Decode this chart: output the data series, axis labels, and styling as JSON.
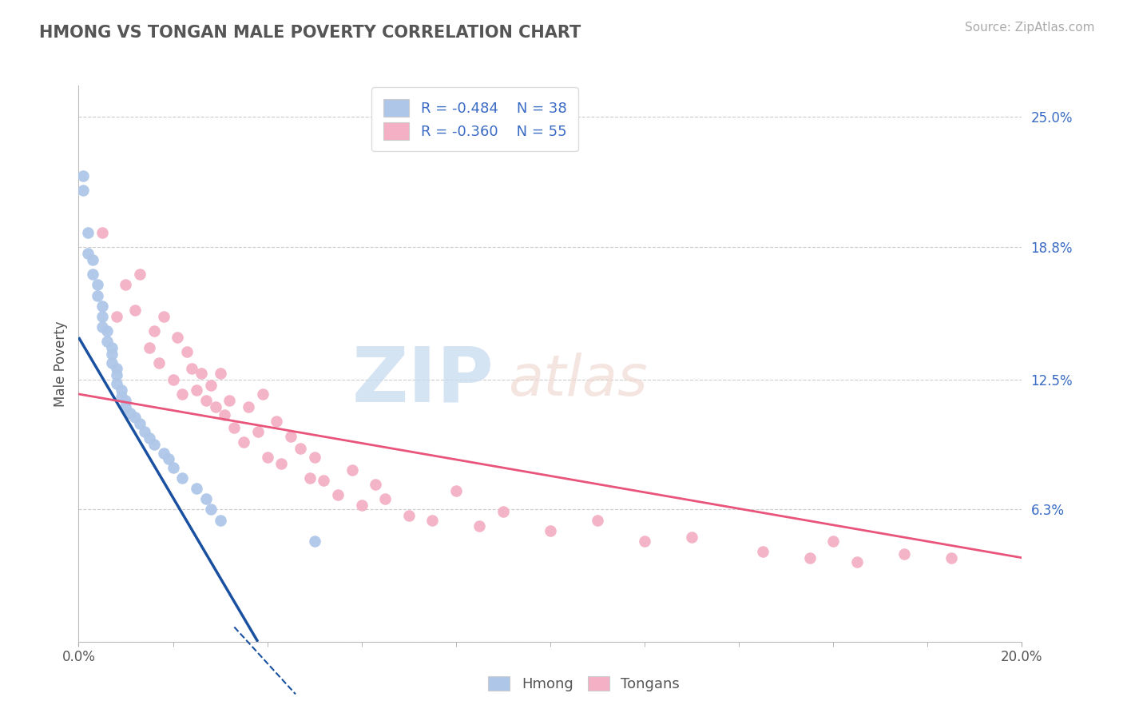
{
  "title": "HMONG VS TONGAN MALE POVERTY CORRELATION CHART",
  "source": "Source: ZipAtlas.com",
  "ylabel": "Male Poverty",
  "xlim": [
    0.0,
    0.2
  ],
  "ylim": [
    0.0,
    0.265
  ],
  "ytick_vals": [
    0.0,
    0.063,
    0.125,
    0.188,
    0.25
  ],
  "ytick_labels": [
    "",
    "6.3%",
    "12.5%",
    "18.8%",
    "25.0%"
  ],
  "xtick_vals": [
    0.0,
    0.2
  ],
  "xtick_labels": [
    "0.0%",
    "20.0%"
  ],
  "hmong_R": "-0.484",
  "hmong_N": "38",
  "tongan_R": "-0.360",
  "tongan_N": "55",
  "hmong_color": "#aec6e8",
  "tongan_color": "#f4b0c4",
  "hmong_line_color": "#1a50a0",
  "tongan_line_color": "#e8547a",
  "background_color": "#ffffff",
  "grid_color": "#cccccc",
  "hmong_x": [
    0.001,
    0.001,
    0.002,
    0.002,
    0.003,
    0.003,
    0.004,
    0.004,
    0.005,
    0.005,
    0.005,
    0.006,
    0.006,
    0.007,
    0.007,
    0.007,
    0.008,
    0.008,
    0.008,
    0.009,
    0.009,
    0.01,
    0.01,
    0.011,
    0.012,
    0.013,
    0.014,
    0.015,
    0.016,
    0.018,
    0.019,
    0.02,
    0.022,
    0.025,
    0.027,
    0.028,
    0.03,
    0.05
  ],
  "hmong_y": [
    0.222,
    0.215,
    0.195,
    0.185,
    0.182,
    0.175,
    0.17,
    0.165,
    0.16,
    0.155,
    0.15,
    0.148,
    0.143,
    0.14,
    0.137,
    0.133,
    0.13,
    0.127,
    0.123,
    0.12,
    0.117,
    0.115,
    0.112,
    0.109,
    0.107,
    0.104,
    0.1,
    0.097,
    0.094,
    0.09,
    0.087,
    0.083,
    0.078,
    0.073,
    0.068,
    0.063,
    0.058,
    0.048
  ],
  "tongan_x": [
    0.005,
    0.008,
    0.01,
    0.012,
    0.013,
    0.015,
    0.016,
    0.017,
    0.018,
    0.02,
    0.021,
    0.022,
    0.023,
    0.024,
    0.025,
    0.026,
    0.027,
    0.028,
    0.029,
    0.03,
    0.031,
    0.032,
    0.033,
    0.035,
    0.036,
    0.038,
    0.039,
    0.04,
    0.042,
    0.043,
    0.045,
    0.047,
    0.049,
    0.05,
    0.052,
    0.055,
    0.058,
    0.06,
    0.063,
    0.065,
    0.07,
    0.075,
    0.08,
    0.085,
    0.09,
    0.1,
    0.11,
    0.12,
    0.13,
    0.145,
    0.155,
    0.16,
    0.165,
    0.175,
    0.185
  ],
  "tongan_y": [
    0.195,
    0.155,
    0.17,
    0.158,
    0.175,
    0.14,
    0.148,
    0.133,
    0.155,
    0.125,
    0.145,
    0.118,
    0.138,
    0.13,
    0.12,
    0.128,
    0.115,
    0.122,
    0.112,
    0.128,
    0.108,
    0.115,
    0.102,
    0.095,
    0.112,
    0.1,
    0.118,
    0.088,
    0.105,
    0.085,
    0.098,
    0.092,
    0.078,
    0.088,
    0.077,
    0.07,
    0.082,
    0.065,
    0.075,
    0.068,
    0.06,
    0.058,
    0.072,
    0.055,
    0.062,
    0.053,
    0.058,
    0.048,
    0.05,
    0.043,
    0.04,
    0.048,
    0.038,
    0.042,
    0.04
  ],
  "hmong_line_x0": 0.0,
  "hmong_line_x1": 0.038,
  "hmong_line_y0": 0.145,
  "hmong_line_y1": 0.0,
  "tongan_line_x0": 0.0,
  "tongan_line_x1": 0.2,
  "tongan_line_y0": 0.118,
  "tongan_line_y1": 0.04
}
